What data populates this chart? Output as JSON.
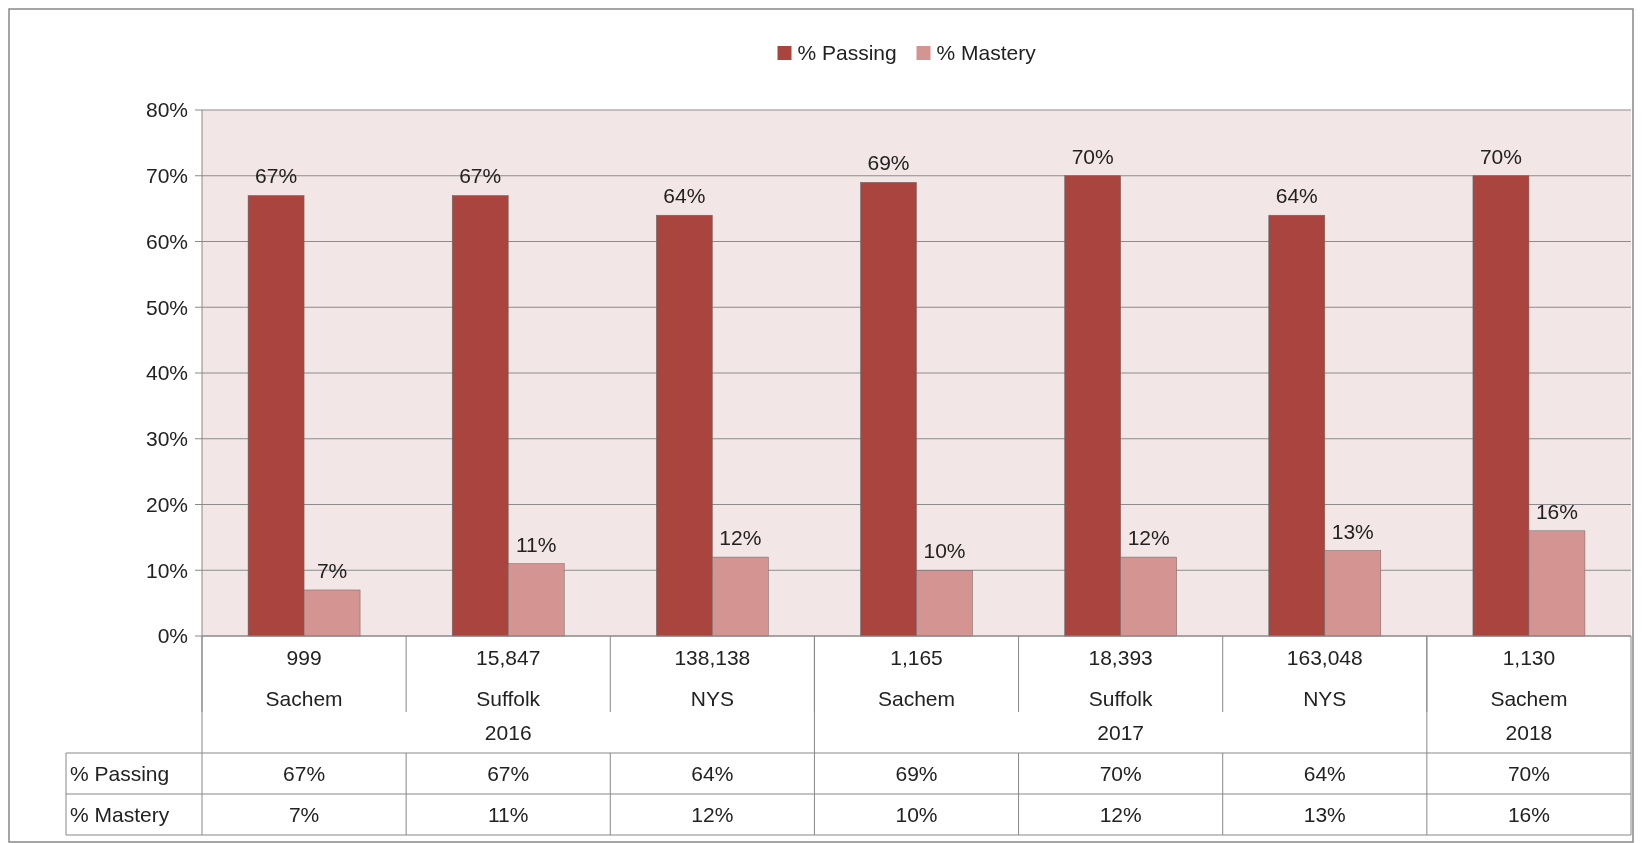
{
  "chart_data": {
    "type": "bar",
    "categories": [
      "999\nSachem",
      "15,847\nSuffolk\n2016",
      "138,138\nNYS",
      "1,165\nSachem",
      "18,393\nSuffolk\n2017",
      "163,048\nNYS",
      "1,130\nSachem\n2018"
    ],
    "series": [
      {
        "name": "% Passing",
        "color": "#a9443f",
        "values": [
          67,
          67,
          64,
          69,
          70,
          64,
          70
        ],
        "value_labels": [
          "67%",
          "67%",
          "64%",
          "69%",
          "70%",
          "64%",
          "70%"
        ]
      },
      {
        "name": "% Mastery",
        "color": "#d49492",
        "values": [
          7,
          11,
          12,
          10,
          12,
          13,
          16
        ],
        "value_labels": [
          "7%",
          "11%",
          "12%",
          "10%",
          "12%",
          "13%",
          "16%"
        ]
      }
    ],
    "ylim": [
      0,
      80
    ],
    "yticks": [
      {
        "value": 0,
        "label": "0%"
      },
      {
        "value": 10,
        "label": "10%"
      },
      {
        "value": 20,
        "label": "20%"
      },
      {
        "value": 30,
        "label": "30%"
      },
      {
        "value": 40,
        "label": "40%"
      },
      {
        "value": 50,
        "label": "50%"
      },
      {
        "value": 60,
        "label": "60%"
      },
      {
        "value": 70,
        "label": "70%"
      },
      {
        "value": 80,
        "label": "80%"
      }
    ],
    "grid": "y",
    "legend": "top"
  }
}
